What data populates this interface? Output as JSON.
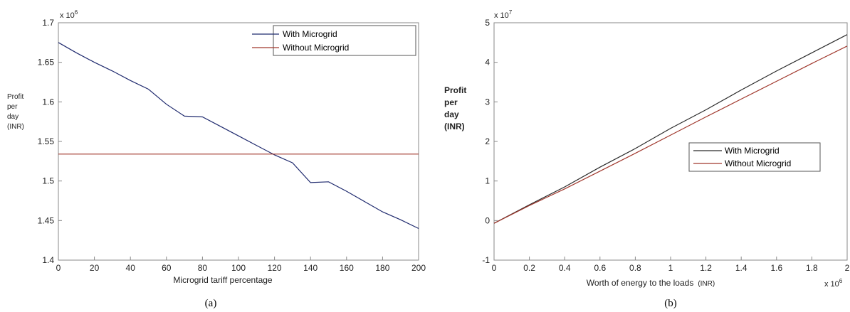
{
  "chart_data": [
    {
      "type": "line",
      "panel_label": "(a)",
      "xlabel": "Microgrid tariff percentage",
      "ylabel": [
        "Profit",
        "per",
        "day",
        "(INR)"
      ],
      "y_multiplier": "x 10",
      "y_multiplier_exp": "6",
      "xlim": [
        0,
        200
      ],
      "ylim": [
        1.4,
        1.7
      ],
      "xticks": [
        "0",
        "20",
        "40",
        "60",
        "80",
        "100",
        "120",
        "140",
        "160",
        "180",
        "200"
      ],
      "yticks": [
        "1.4",
        "1.45",
        "1.5",
        "1.55",
        "1.6",
        "1.65",
        "1.7"
      ],
      "legend_position": "top-right",
      "series": [
        {
          "name": "With Microgrid",
          "color": "#1f2a6e",
          "x": [
            0,
            10,
            20,
            30,
            40,
            50,
            60,
            70,
            80,
            90,
            100,
            110,
            120,
            130,
            140,
            150,
            160,
            170,
            180,
            190,
            200
          ],
          "y": [
            1.675,
            1.662,
            1.65,
            1.639,
            1.627,
            1.616,
            1.597,
            1.582,
            1.581,
            1.569,
            1.557,
            1.545,
            1.533,
            1.523,
            1.498,
            1.499,
            1.487,
            1.474,
            1.461,
            1.451,
            1.44
          ]
        },
        {
          "name": "Without Microgrid",
          "color": "#a0372c",
          "x": [
            0,
            200
          ],
          "y": [
            1.534,
            1.534
          ]
        }
      ]
    },
    {
      "type": "line",
      "panel_label": "(b)",
      "xlabel": "Worth of energy to the loads",
      "xlabel_unit": "(INR)",
      "ylabel": [
        "Profit",
        "per",
        "day",
        "(INR)"
      ],
      "y_multiplier": "x 10",
      "y_multiplier_exp": "7",
      "x_multiplier": "x 10",
      "x_multiplier_exp": "6",
      "xlim": [
        0,
        2
      ],
      "ylim": [
        -1,
        5
      ],
      "xticks": [
        "0",
        "0.2",
        "0.4",
        "0.6",
        "0.8",
        "1",
        "1.2",
        "1.4",
        "1.6",
        "1.8",
        "2"
      ],
      "yticks": [
        "-1",
        "0",
        "1",
        "2",
        "3",
        "4",
        "5"
      ],
      "legend_position": "center-right",
      "series": [
        {
          "name": "With Microgrid",
          "color": "#2b2b2b",
          "x": [
            0,
            0.2,
            0.4,
            0.6,
            0.8,
            1.0,
            1.2,
            1.4,
            1.6,
            1.8,
            2.0
          ],
          "y": [
            -0.07,
            0.4,
            0.85,
            1.35,
            1.82,
            2.33,
            2.8,
            3.3,
            3.78,
            4.24,
            4.7
          ]
        },
        {
          "name": "Without Microgrid",
          "color": "#a0372c",
          "x": [
            0,
            0.2,
            0.4,
            0.6,
            0.8,
            1.0,
            1.2,
            1.4,
            1.6,
            1.8,
            2.0
          ],
          "y": [
            -0.07,
            0.38,
            0.8,
            1.25,
            1.7,
            2.16,
            2.62,
            3.07,
            3.52,
            3.97,
            4.41
          ]
        }
      ]
    }
  ]
}
